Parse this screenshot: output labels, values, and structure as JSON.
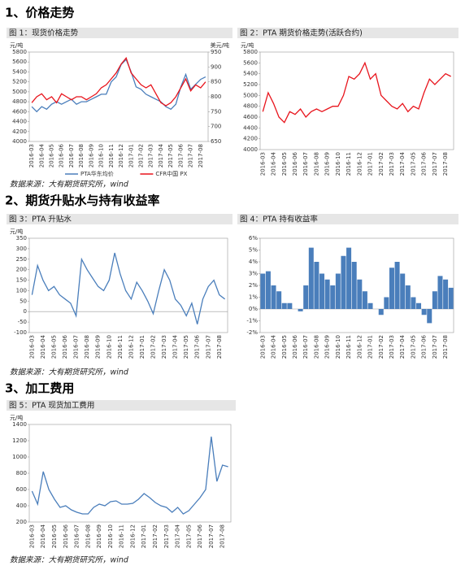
{
  "sections": [
    {
      "heading": "1、价格走势",
      "source": "数据来源：大有期货研究所，wind"
    },
    {
      "heading": "2、期货升贴水与持有收益率",
      "source": "数据来源：大有期货研究所，wind"
    },
    {
      "heading": "3、加工费用",
      "source": "数据来源：大有期货研究所，wind"
    }
  ],
  "chart_data": [
    {
      "type": "line",
      "title": "图 1：现货价格走势",
      "y_unit": "元/吨",
      "y2_unit": "美元/吨",
      "categories": [
        "2016-03",
        null,
        "2016-04",
        null,
        "2016-05",
        null,
        "2016-06",
        null,
        "2016-07",
        null,
        "2016-08",
        null,
        "2016-09",
        null,
        "2016-10",
        null,
        "2016-11",
        null,
        "2016-12",
        null,
        "2017-01",
        null,
        "2017-02",
        null,
        "2017-03",
        null,
        "2017-04",
        null,
        "2017-05",
        null,
        "2017-06",
        null,
        "2017-07",
        null,
        "2017-08",
        null
      ],
      "series": [
        {
          "name": "PTA华东均价",
          "color": "#4a7ebb",
          "values": [
            4700,
            4600,
            4700,
            4650,
            4750,
            4800,
            4750,
            4800,
            4850,
            4750,
            4800,
            4800,
            4850,
            4900,
            4950,
            4950,
            5200,
            5300,
            5550,
            5650,
            5400,
            5100,
            5050,
            4950,
            4900,
            4850,
            4800,
            4700,
            4650,
            4750,
            5100,
            5350,
            5050,
            5150,
            5250,
            5300
          ]
        },
        {
          "name": "CFR中国 PX",
          "color": "#e8141c",
          "axis": "y2",
          "values": [
            780,
            800,
            810,
            790,
            800,
            780,
            810,
            800,
            790,
            800,
            800,
            790,
            800,
            810,
            830,
            840,
            860,
            880,
            910,
            930,
            880,
            860,
            840,
            830,
            840,
            810,
            780,
            770,
            780,
            800,
            830,
            860,
            820,
            840,
            830,
            850
          ]
        }
      ],
      "ylim": [
        4000,
        5800
      ],
      "yticks": [
        4000,
        4200,
        4400,
        4600,
        4800,
        5000,
        5200,
        5400,
        5600,
        5800
      ],
      "y2lim": [
        650,
        950
      ],
      "y2ticks": [
        650,
        700,
        750,
        800,
        850,
        900,
        950
      ],
      "legend": "bottom"
    },
    {
      "type": "line",
      "title": "图 2：PTA 期货价格走势(活跃合约)",
      "y_unit": "元/吨",
      "categories": [
        "2016-03",
        null,
        "2016-04",
        null,
        "2016-05",
        null,
        "2016-06",
        null,
        "2016-07",
        null,
        "2016-08",
        null,
        "2016-09",
        null,
        "2016-10",
        null,
        "2016-11",
        null,
        "2016-12",
        null,
        "2017-01",
        null,
        "2017-02",
        null,
        "2017-03",
        null,
        "2017-04",
        null,
        "2017-05",
        null,
        "2017-06",
        null,
        "2017-07",
        null,
        "2017-08",
        null
      ],
      "series": [
        {
          "color": "#e8141c",
          "values": [
            4700,
            5050,
            4850,
            4600,
            4500,
            4700,
            4650,
            4750,
            4600,
            4700,
            4750,
            4700,
            4750,
            4800,
            4800,
            5000,
            5350,
            5300,
            5400,
            5600,
            5300,
            5400,
            5000,
            4900,
            4800,
            4750,
            4850,
            4700,
            4800,
            4750,
            5050,
            5300,
            5200,
            5300,
            5400,
            5350
          ]
        }
      ],
      "ylim": [
        4000,
        5800
      ],
      "yticks": [
        4000,
        4200,
        4400,
        4600,
        4800,
        5000,
        5200,
        5400,
        5600,
        5800
      ]
    },
    {
      "type": "line",
      "title": "图 3：PTA 升贴水",
      "y_unit": "元/吨",
      "categories": [
        "2016-03",
        null,
        "2016-04",
        null,
        "2016-05",
        null,
        "2016-06",
        null,
        "2016-07",
        null,
        "2016-08",
        null,
        "2016-09",
        null,
        "2016-10",
        null,
        "2016-11",
        null,
        "2016-12",
        null,
        "2017-01",
        null,
        "2017-02",
        null,
        "2017-03",
        null,
        "2017-04",
        null,
        "2017-05",
        null,
        "2017-06",
        null,
        "2017-07",
        null,
        "2017-08",
        null
      ],
      "series": [
        {
          "color": "#4a7ebb",
          "values": [
            80,
            220,
            150,
            100,
            120,
            80,
            60,
            40,
            -20,
            250,
            200,
            160,
            120,
            100,
            150,
            280,
            180,
            100,
            60,
            140,
            100,
            50,
            -10,
            100,
            200,
            150,
            60,
            30,
            -20,
            40,
            -60,
            60,
            120,
            150,
            80,
            60
          ]
        }
      ],
      "ylim": [
        -100,
        350
      ],
      "yticks": [
        -100,
        -50,
        0,
        50,
        100,
        150,
        200,
        250,
        300,
        350
      ]
    },
    {
      "type": "bar",
      "title": "图 4：PTA 持有收益率",
      "categories": [
        "2016-03",
        null,
        "2016-04",
        null,
        "2016-05",
        null,
        "2016-06",
        null,
        "2016-07",
        null,
        "2016-08",
        null,
        "2016-09",
        null,
        "2016-10",
        null,
        "2016-11",
        null,
        "2016-12",
        null,
        "2017-01",
        null,
        "2017-02",
        null,
        "2017-03",
        null,
        "2017-04",
        null,
        "2017-05",
        null,
        "2017-06",
        null,
        "2017-07",
        null,
        "2017-08",
        null
      ],
      "series": [
        {
          "color": "#4a7ebb",
          "values": [
            3,
            3.2,
            2,
            1.5,
            0.5,
            0.5,
            0,
            -0.2,
            2,
            5.2,
            4,
            3,
            2.5,
            2,
            3,
            4.5,
            5.2,
            4,
            2.5,
            1.5,
            0.5,
            0,
            -0.5,
            1,
            3.5,
            4,
            3,
            2,
            1,
            0.5,
            -0.5,
            -1.2,
            1.5,
            2.8,
            2.5,
            1.8
          ]
        }
      ],
      "ylim": [
        -2,
        6
      ],
      "yticks": [
        {
          "value": -2,
          "label": "-2%"
        },
        {
          "value": -1,
          "label": "-1%"
        },
        {
          "value": 0,
          "label": "0%"
        },
        {
          "value": 1,
          "label": "1%"
        },
        {
          "value": 2,
          "label": "2%"
        },
        {
          "value": 3,
          "label": "3%"
        },
        {
          "value": 4,
          "label": "4%"
        },
        {
          "value": 5,
          "label": "5%"
        },
        {
          "value": 6,
          "label": "6%"
        }
      ]
    },
    {
      "type": "line",
      "title": "图 5：PTA 现货加工费用",
      "y_unit": "元/吨",
      "categories": [
        "2016-03",
        null,
        "2016-04",
        null,
        "2016-05",
        null,
        "2016-06",
        null,
        "2016-07",
        null,
        "2016-08",
        null,
        "2016-09",
        null,
        "2016-10",
        null,
        "2016-11",
        null,
        "2016-12",
        null,
        "2017-01",
        null,
        "2017-02",
        null,
        "2017-03",
        null,
        "2017-04",
        null,
        "2017-05",
        null,
        "2017-06",
        null,
        "2017-07",
        null,
        "2017-08",
        null
      ],
      "series": [
        {
          "color": "#4a7ebb",
          "values": [
            580,
            420,
            820,
            600,
            480,
            380,
            400,
            350,
            320,
            300,
            300,
            380,
            420,
            400,
            450,
            460,
            420,
            420,
            430,
            480,
            550,
            500,
            440,
            400,
            380,
            320,
            380,
            300,
            340,
            420,
            500,
            600,
            1250,
            700,
            900,
            880
          ]
        }
      ],
      "ylim": [
        200,
        1400
      ],
      "yticks": [
        200,
        400,
        600,
        800,
        1000,
        1200,
        1400
      ]
    }
  ]
}
